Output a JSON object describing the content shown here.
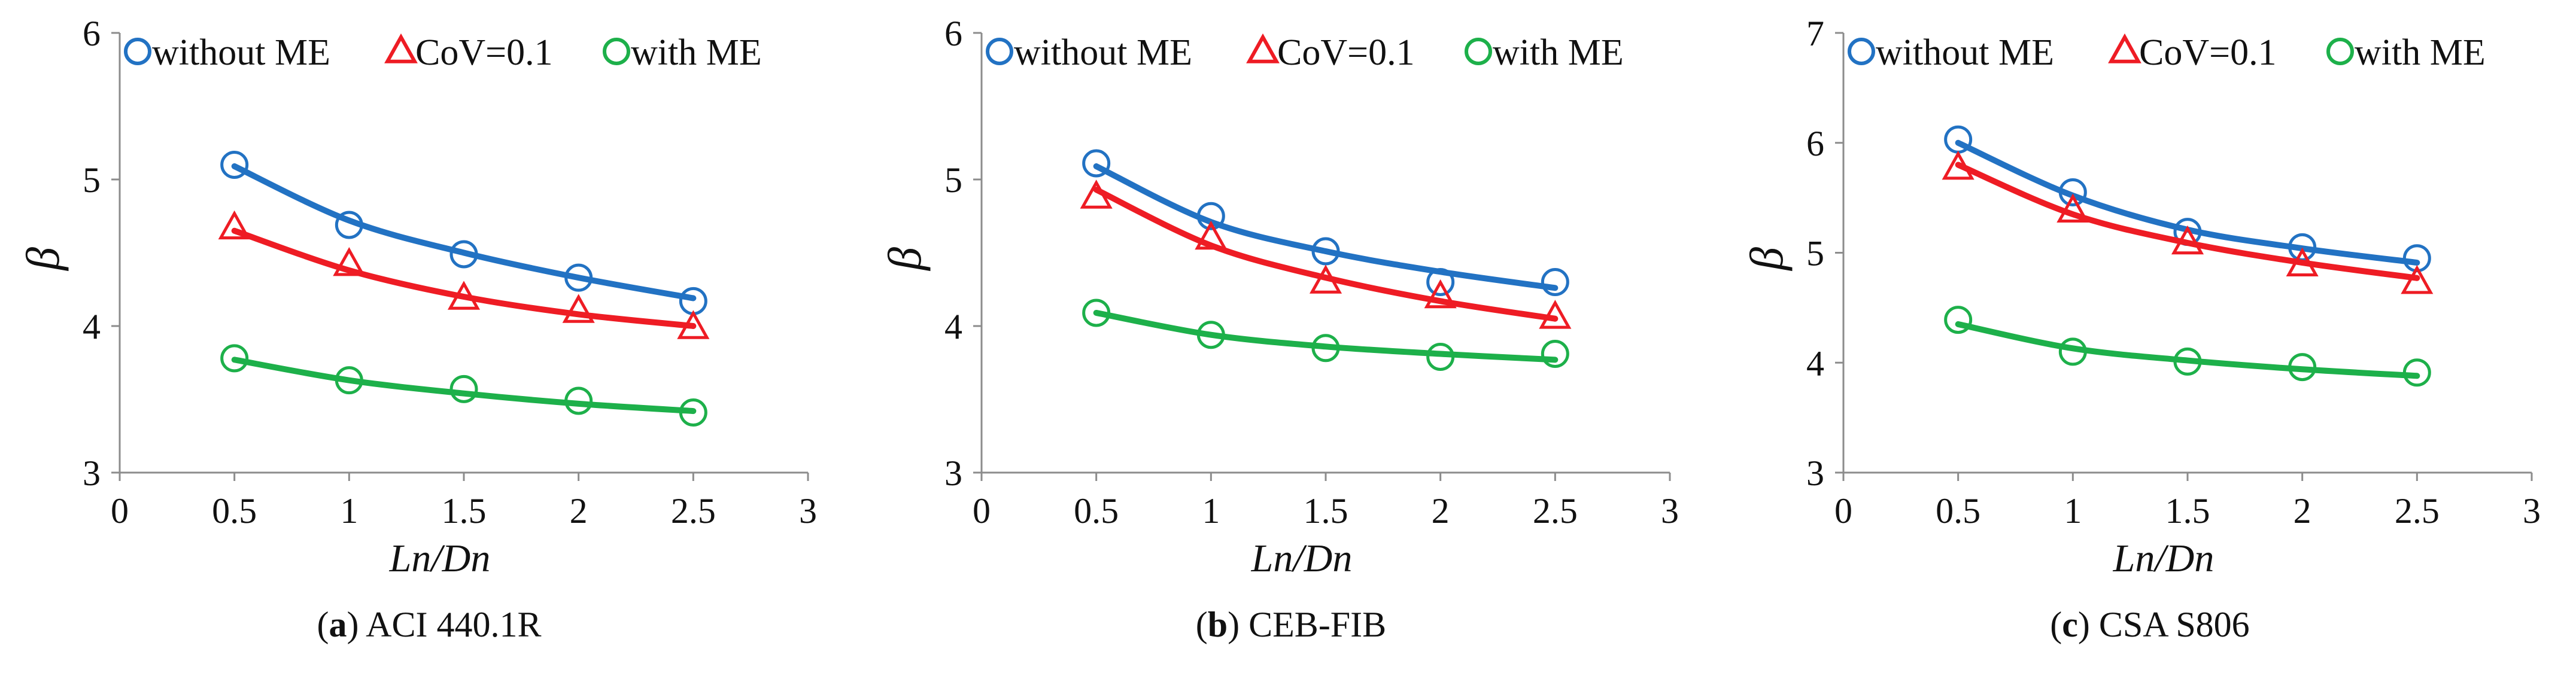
{
  "colors": {
    "without_me": "#2272C3",
    "cov": "#EE1C24",
    "with_me": "#1DB04A",
    "axis": "#8c8c8c",
    "text": "#111111"
  },
  "legend": [
    {
      "series": "without_me",
      "label": "without ME",
      "marker": "circle"
    },
    {
      "series": "cov",
      "label": "CoV=0.1",
      "marker": "triangle"
    },
    {
      "series": "with_me",
      "label": "with ME",
      "marker": "circle"
    }
  ],
  "chart_data": [
    {
      "type": "scatter",
      "caption_letter": "a",
      "caption_text": "ACI 440.1R",
      "xlabel": "Ln/Dn",
      "ylabel": "β",
      "xlim": [
        0,
        3
      ],
      "ylim": [
        3,
        6
      ],
      "xticks": [
        0,
        0.5,
        1,
        1.5,
        2,
        2.5,
        3
      ],
      "yticks": [
        3,
        4,
        5,
        6
      ],
      "xtick_labels": [
        "0",
        "0.5",
        "1",
        "1.5",
        "2",
        "2.5",
        "3"
      ],
      "ytick_labels": [
        "3",
        "4",
        "5",
        "6"
      ],
      "x": [
        0.5,
        1,
        1.5,
        2,
        2.5
      ],
      "series": [
        {
          "key": "without_me",
          "name": "without ME",
          "values": [
            5.1,
            4.69,
            4.49,
            4.33,
            4.17
          ],
          "fit": [
            5.09,
            4.72,
            4.5,
            4.33,
            4.19
          ]
        },
        {
          "key": "cov",
          "name": "CoV=0.1",
          "values": [
            4.67,
            4.42,
            4.19,
            4.1,
            3.99
          ],
          "fit": [
            4.65,
            4.38,
            4.2,
            4.08,
            4.0
          ]
        },
        {
          "key": "with_me",
          "name": "with ME",
          "values": [
            3.78,
            3.63,
            3.57,
            3.49,
            3.41
          ],
          "fit": [
            3.77,
            3.63,
            3.54,
            3.47,
            3.42
          ]
        }
      ]
    },
    {
      "type": "scatter",
      "caption_letter": "b",
      "caption_text": "CEB-FIB",
      "xlabel": "Ln/Dn",
      "ylabel": "β",
      "xlim": [
        0,
        3
      ],
      "ylim": [
        3,
        6
      ],
      "xticks": [
        0,
        0.5,
        1,
        1.5,
        2,
        2.5,
        3
      ],
      "yticks": [
        3,
        4,
        5,
        6
      ],
      "xtick_labels": [
        "0",
        "0.5",
        "1",
        "1.5",
        "2",
        "2.5",
        "3"
      ],
      "ytick_labels": [
        "3",
        "4",
        "5",
        "6"
      ],
      "x": [
        0.5,
        1,
        1.5,
        2,
        2.5
      ],
      "series": [
        {
          "key": "without_me",
          "name": "without ME",
          "values": [
            5.11,
            4.75,
            4.51,
            4.3,
            4.3
          ],
          "fit": [
            5.09,
            4.71,
            4.51,
            4.37,
            4.26
          ]
        },
        {
          "key": "cov",
          "name": "CoV=0.1",
          "values": [
            4.88,
            4.6,
            4.3,
            4.2,
            4.06
          ],
          "fit": [
            4.93,
            4.55,
            4.33,
            4.17,
            4.05
          ]
        },
        {
          "key": "with_me",
          "name": "with ME",
          "values": [
            4.09,
            3.94,
            3.85,
            3.79,
            3.81
          ],
          "fit": [
            4.09,
            3.94,
            3.86,
            3.81,
            3.77
          ]
        }
      ]
    },
    {
      "type": "scatter",
      "caption_letter": "c",
      "caption_text": "CSA S806",
      "xlabel": "Ln/Dn",
      "ylabel": "β",
      "xlim": [
        0,
        3
      ],
      "ylim": [
        3,
        7
      ],
      "xticks": [
        0,
        0.5,
        1,
        1.5,
        2,
        2.5,
        3
      ],
      "yticks": [
        3,
        4,
        5,
        6,
        7
      ],
      "xtick_labels": [
        "0",
        "0.5",
        "1",
        "1.5",
        "2",
        "2.5",
        "3"
      ],
      "ytick_labels": [
        "3",
        "4",
        "5",
        "6",
        "7"
      ],
      "x": [
        0.5,
        1,
        1.5,
        2,
        2.5
      ],
      "series": [
        {
          "key": "without_me",
          "name": "without ME",
          "values": [
            6.03,
            5.55,
            5.19,
            5.05,
            4.95
          ],
          "fit": [
            6.0,
            5.52,
            5.21,
            5.04,
            4.91
          ]
        },
        {
          "key": "cov",
          "name": "CoV=0.1",
          "values": [
            5.77,
            5.38,
            5.09,
            4.89,
            4.73
          ],
          "fit": [
            5.8,
            5.35,
            5.09,
            4.91,
            4.77
          ]
        },
        {
          "key": "with_me",
          "name": "with ME",
          "values": [
            4.39,
            4.1,
            4.01,
            3.96,
            3.91
          ],
          "fit": [
            4.35,
            4.13,
            4.02,
            3.94,
            3.88
          ]
        }
      ]
    }
  ]
}
